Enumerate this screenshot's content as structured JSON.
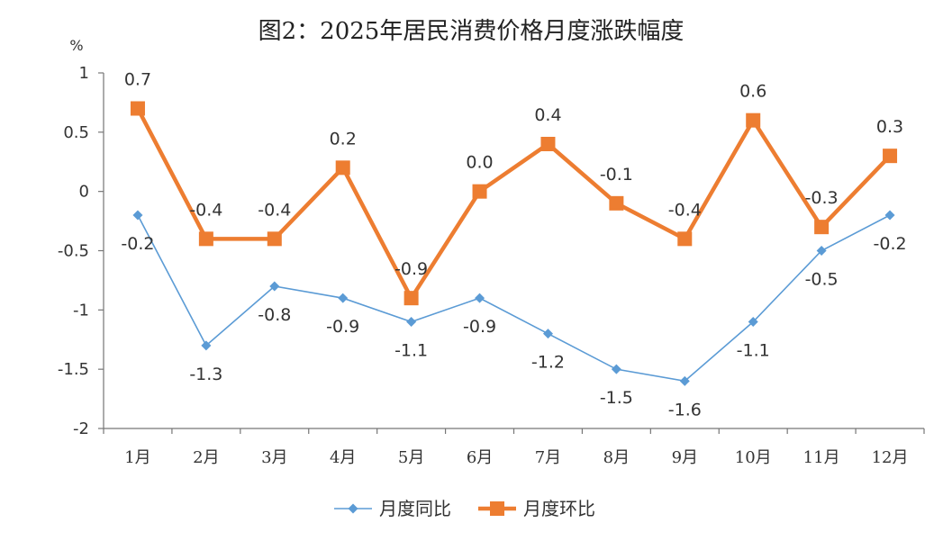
{
  "chart_data": {
    "type": "line",
    "title": "图2：2025年居民消费价格月度涨跌幅度",
    "unit": "%",
    "categories": [
      "1月",
      "2月",
      "3月",
      "4月",
      "5月",
      "6月",
      "7月",
      "8月",
      "9月",
      "10月",
      "11月",
      "12月"
    ],
    "ylim": [
      -2,
      1
    ],
    "yticks": [
      1,
      0.5,
      0,
      -0.5,
      -1,
      -1.5,
      -2
    ],
    "ytick_labels": [
      "1",
      "0.5",
      "0",
      "-0.5",
      "-1",
      "-1.5",
      "-2"
    ],
    "grid": false,
    "legend_position": "bottom",
    "series": [
      {
        "name": "月度同比",
        "color": "#5B9BD5",
        "marker": "diamond",
        "values": [
          -0.2,
          -1.3,
          -0.8,
          -0.9,
          -1.1,
          -0.9,
          -1.2,
          -1.5,
          -1.6,
          -1.1,
          -0.5,
          -0.2
        ],
        "labels": [
          "-0.2",
          "-1.3",
          "-0.8",
          "-0.9",
          "-1.1",
          "-0.9",
          "-1.2",
          "-1.5",
          "-1.6",
          "-1.1",
          "-0.5",
          "-0.2"
        ]
      },
      {
        "name": "月度环比",
        "color": "#ED7D31",
        "marker": "square",
        "values": [
          0.7,
          -0.4,
          -0.4,
          0.2,
          -0.9,
          0.0,
          0.4,
          -0.1,
          -0.4,
          0.6,
          -0.3,
          0.3
        ],
        "labels": [
          "0.7",
          "-0.4",
          "-0.4",
          "0.2",
          "-0.9",
          "0.0",
          "0.4",
          "-0.1",
          "-0.4",
          "0.6",
          "-0.3",
          "0.3"
        ]
      }
    ]
  }
}
